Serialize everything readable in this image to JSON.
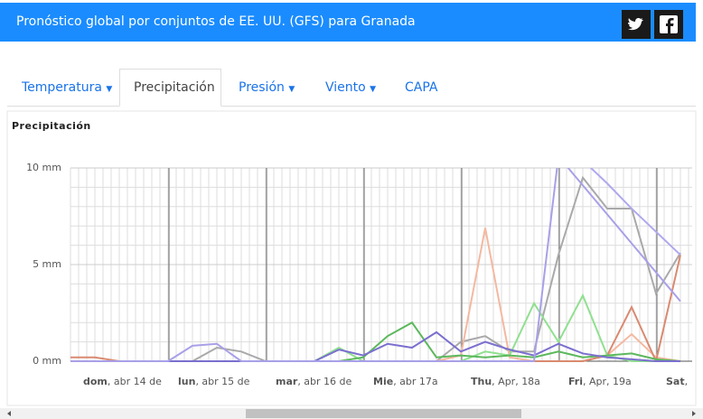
{
  "header": {
    "title": "Pronóstico global por conjuntos de EE. UU. (GFS) para Granada"
  },
  "tabs": [
    "Temperatura",
    "Precipitación",
    "Presión",
    "Viento",
    "CAPA"
  ],
  "chart_data": {
    "type": "line",
    "title": "Precipitación",
    "x_labels": [
      {
        "day": "dom",
        "date": ", abr 14 de"
      },
      {
        "day": "lun",
        "date": ", abr 15 de"
      },
      {
        "day": "mar",
        "date": ", abr 16 de"
      },
      {
        "day": "Mie",
        "date": ", abr 17a"
      },
      {
        "day": "Thu",
        "date": ", Apr, 18a"
      },
      {
        "day": "Fri",
        "date": ", Apr, 19a"
      },
      {
        "day": "Sat",
        "date": ","
      }
    ],
    "ylim": [
      0,
      10
    ],
    "yticks": [
      {
        "value": 0,
        "label": "0 mm"
      },
      {
        "value": 5,
        "label": "5 mm"
      },
      {
        "value": 10,
        "label": "10 mm"
      }
    ],
    "grid": true,
    "series": [
      {
        "color": "#a9a9a9",
        "values": [
          0,
          0,
          0,
          0,
          0,
          0,
          0.7,
          0.5,
          0,
          0,
          0,
          0,
          0,
          0,
          0,
          0,
          1.0,
          1.3,
          0.5,
          0.5,
          5.5,
          9.5,
          7.9,
          7.9,
          3.5,
          5.6
        ]
      },
      {
        "color": "#f4b8a0",
        "values": [
          0,
          0,
          0,
          0,
          0,
          0,
          0,
          0,
          0,
          0,
          0,
          0,
          0,
          0,
          0,
          0,
          0.3,
          6.9,
          0.2,
          0,
          0,
          0,
          0.3,
          1.4,
          0.2,
          0
        ]
      },
      {
        "color": "#d98a70",
        "values": [
          0.2,
          0.2,
          0,
          0,
          0,
          0,
          0,
          0,
          0,
          0,
          0,
          0,
          0,
          0,
          0,
          0,
          0,
          0,
          0,
          0,
          0,
          0,
          0.3,
          2.8,
          0,
          5.5
        ]
      },
      {
        "color": "#90e090",
        "values": [
          0,
          0,
          0,
          0,
          0,
          0,
          0,
          0,
          0,
          0,
          0,
          0.7,
          0,
          0,
          0,
          0,
          0,
          0.5,
          0.3,
          3.0,
          1.0,
          3.4,
          0.3,
          0,
          0,
          0
        ]
      },
      {
        "color": "#5cb85c",
        "values": [
          0,
          0,
          0,
          0,
          0,
          0,
          0,
          0,
          0,
          0,
          0,
          0,
          0.2,
          1.3,
          2.0,
          0.2,
          0.3,
          0.2,
          0.3,
          0.2,
          0.5,
          0.2,
          0.3,
          0.4,
          0.1,
          0
        ]
      },
      {
        "color": "#7b6fcf",
        "values": [
          0,
          0,
          0,
          0,
          0,
          0,
          0,
          0,
          0,
          0,
          0,
          0.6,
          0.3,
          0.9,
          0.7,
          1.5,
          0.5,
          1.0,
          0.6,
          0.3,
          0.9,
          0.4,
          0.2,
          0.1,
          0,
          0
        ]
      },
      {
        "color": "#a8a0e8",
        "values": [
          0,
          0,
          0,
          0,
          0,
          0.8,
          0.9,
          0,
          0,
          0,
          0,
          0,
          0,
          0,
          0,
          0,
          0,
          0,
          0,
          0,
          10.6,
          9.1,
          7.6,
          6.1,
          4.6,
          3.1
        ]
      },
      {
        "color": "#b0a8ee",
        "values": [
          null,
          null,
          null,
          null,
          null,
          null,
          null,
          null,
          null,
          null,
          null,
          null,
          null,
          null,
          null,
          null,
          null,
          null,
          null,
          null,
          null,
          10.4,
          9.2,
          7.9,
          6.7,
          5.5
        ]
      }
    ]
  }
}
